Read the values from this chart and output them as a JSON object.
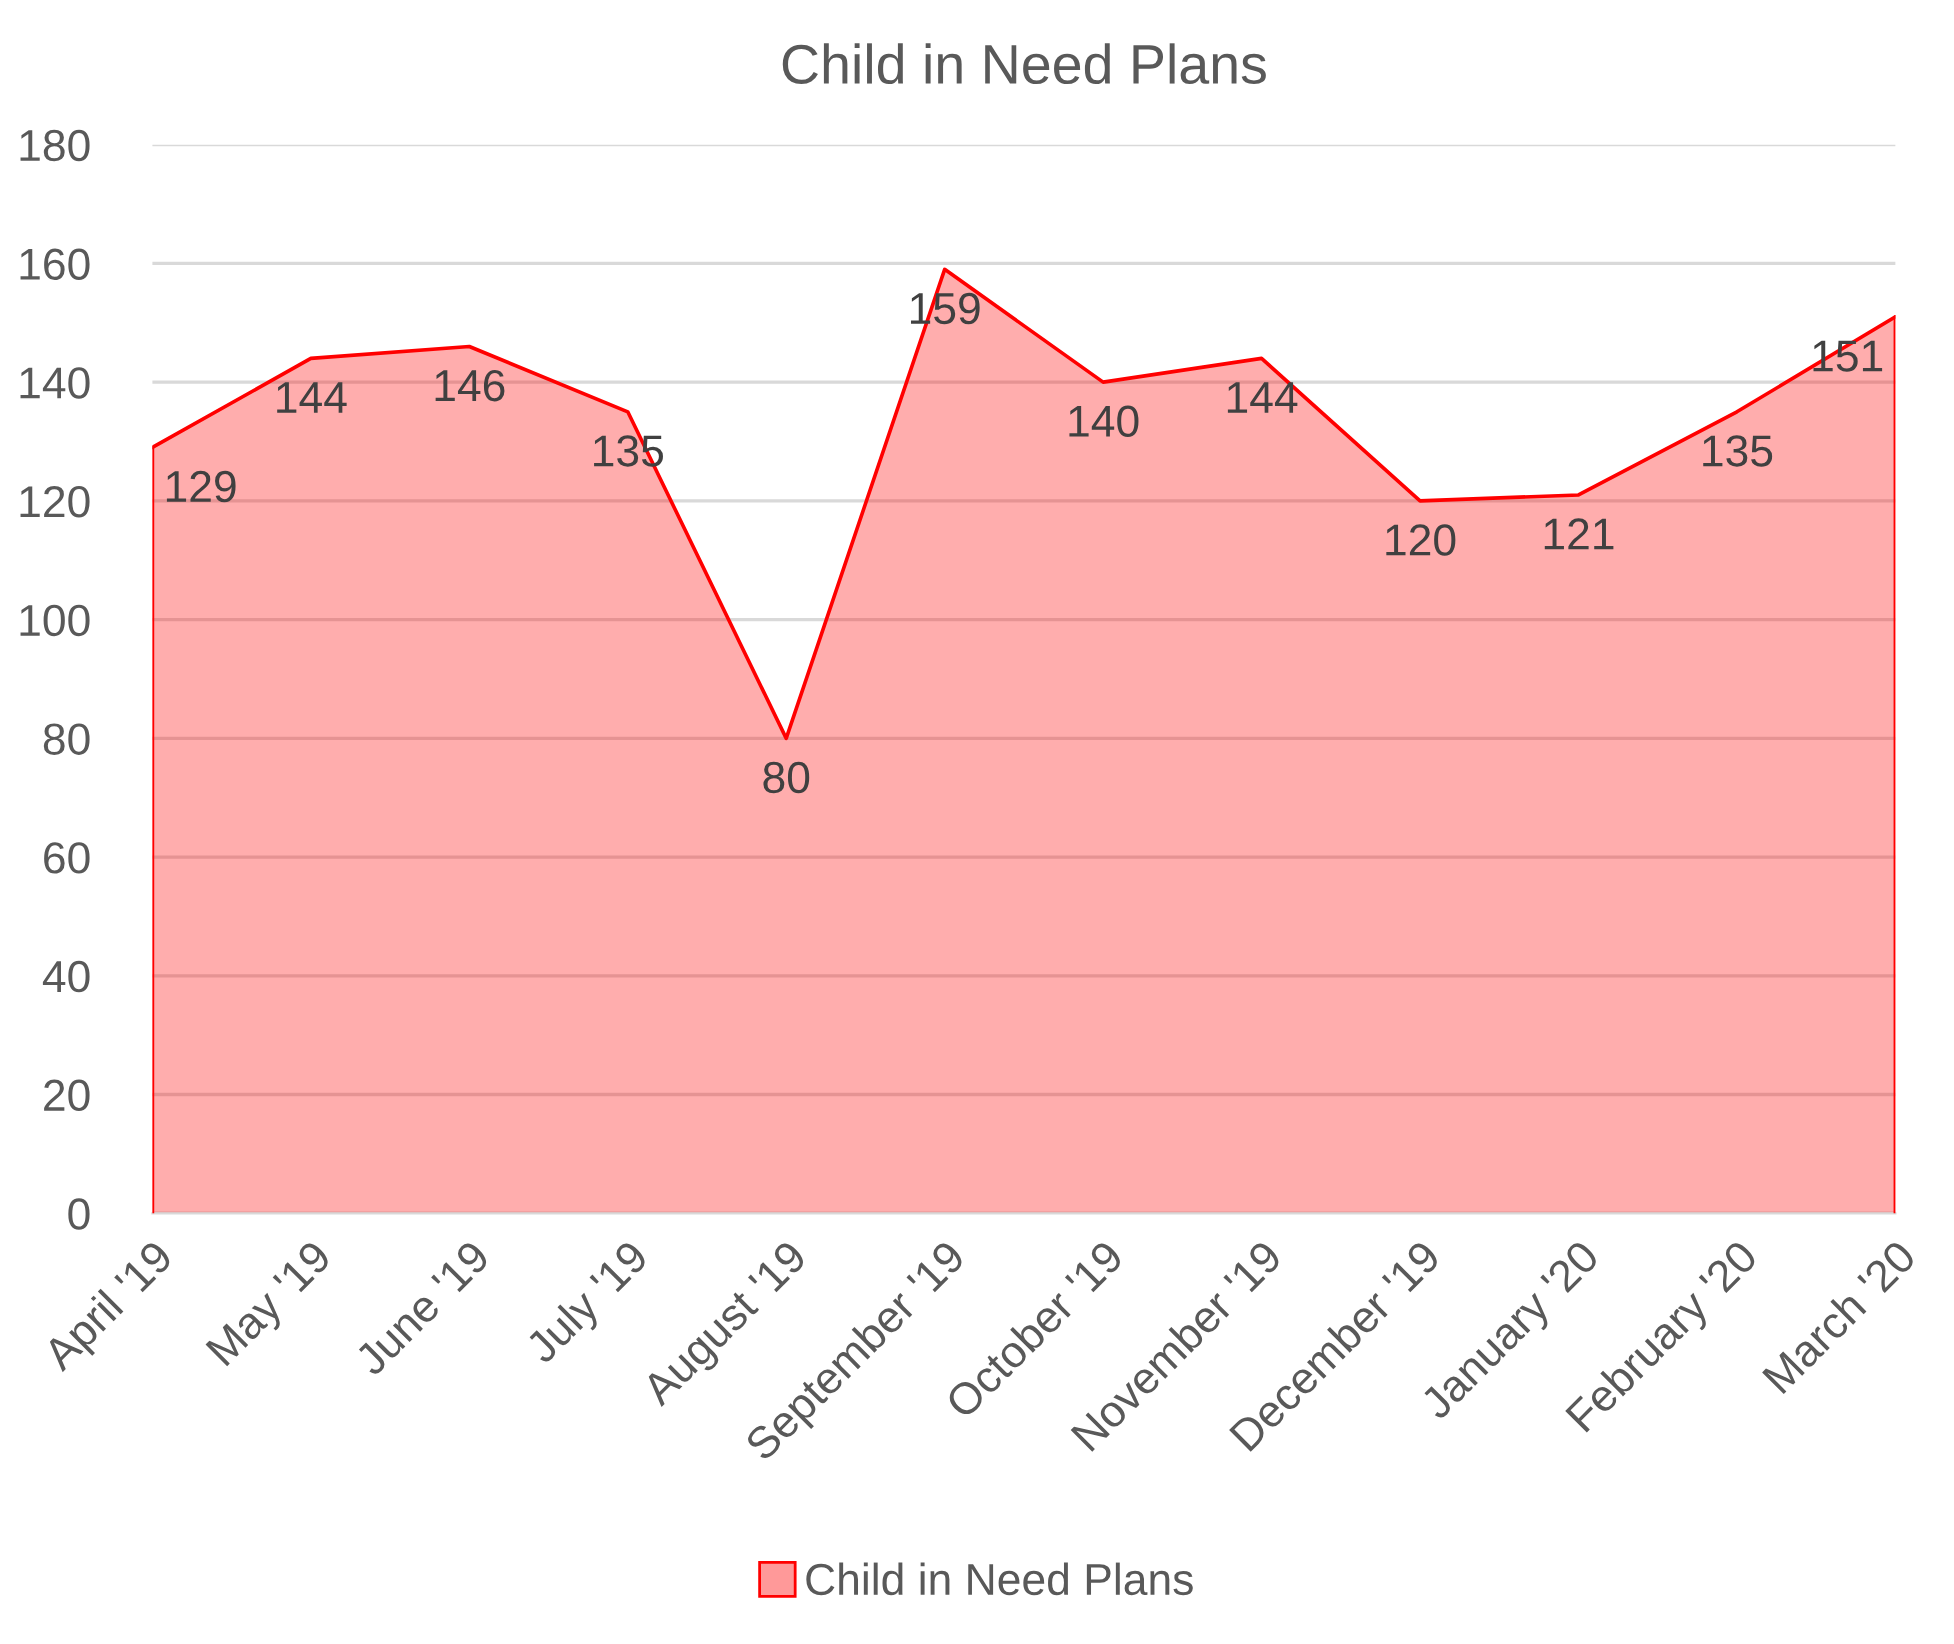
{
  "chart_data": {
    "type": "area",
    "title": "Child in Need Plans",
    "categories": [
      "April '19",
      "May '19",
      "June '19",
      "July '19",
      "August '19",
      "September '19",
      "October '19",
      "November '19",
      "December '19",
      "January '20",
      "February '20",
      "March '20"
    ],
    "series": [
      {
        "name": "Child in Need Plans",
        "color": "#ff0000",
        "values": [
          129,
          144,
          146,
          135,
          80,
          159,
          140,
          144,
          120,
          121,
          135,
          151
        ]
      }
    ],
    "ylim": [
      0,
      180
    ],
    "yticks": [
      0,
      20,
      40,
      60,
      80,
      100,
      120,
      140,
      160,
      180
    ],
    "grid": "y",
    "legend": "bottom",
    "data_labels": true
  }
}
